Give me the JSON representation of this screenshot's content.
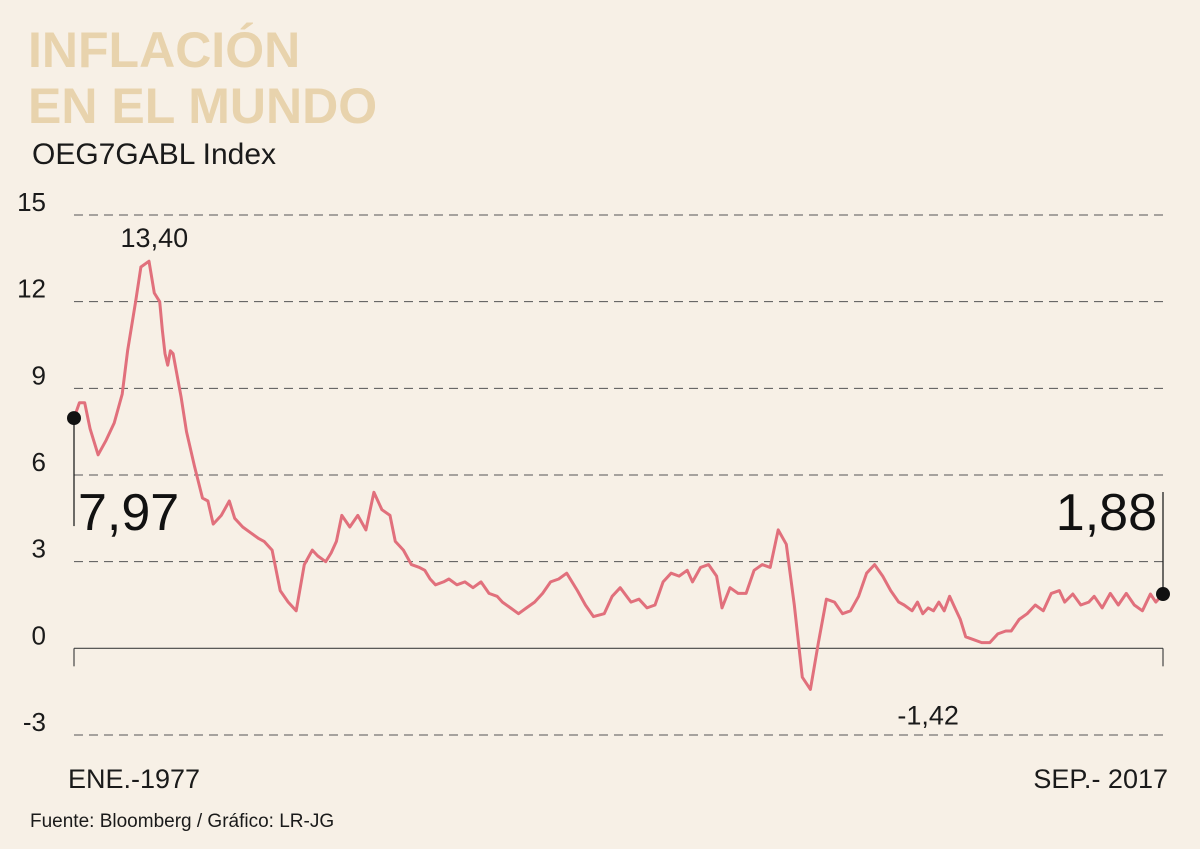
{
  "header": {
    "title_line1": "INFLACIÓN",
    "title_line2": "EN EL MUNDO",
    "subtitle": "OEG7GABL Index"
  },
  "footer": {
    "source": "Fuente: Bloomberg / Gráfico: LR-JG"
  },
  "colors": {
    "line": "#e1707c",
    "title": "#e8d3ad",
    "background": "#f7f0e6",
    "grid": "#555555"
  },
  "chart_data": {
    "type": "line",
    "title": "INFLACIÓN EN EL MUNDO",
    "subtitle": "OEG7GABL Index",
    "xlabel": "",
    "ylabel": "",
    "x_start": 1977.0,
    "x_end": 2017.67,
    "x_tick_labels": [
      "ENE.-1977",
      "SEP.- 2017"
    ],
    "y_ticks": [
      15,
      12,
      9,
      6,
      3,
      0,
      -3
    ],
    "y_tick_labels": [
      "15",
      "12",
      "9",
      "6",
      "3",
      "0",
      "-3"
    ],
    "ylim": [
      -3,
      15
    ],
    "grid": true,
    "series": [
      {
        "name": "OEG7GABL Index",
        "x": [
          1977.0,
          1977.2,
          1977.4,
          1977.6,
          1977.9,
          1978.2,
          1978.5,
          1978.8,
          1979.0,
          1979.3,
          1979.5,
          1979.8,
          1980.0,
          1980.2,
          1980.3,
          1980.4,
          1980.5,
          1980.6,
          1980.7,
          1981.0,
          1981.2,
          1981.5,
          1981.8,
          1982.0,
          1982.2,
          1982.5,
          1982.8,
          1983.0,
          1983.3,
          1983.6,
          1983.9,
          1984.1,
          1984.4,
          1984.7,
          1985.0,
          1985.3,
          1985.6,
          1985.9,
          1986.1,
          1986.4,
          1986.6,
          1986.8,
          1987.0,
          1987.3,
          1987.6,
          1987.9,
          1988.2,
          1988.5,
          1988.8,
          1989.0,
          1989.3,
          1989.6,
          1989.9,
          1990.1,
          1990.3,
          1990.5,
          1990.8,
          1991.0,
          1991.3,
          1991.6,
          1991.9,
          1992.2,
          1992.5,
          1992.8,
          1993.0,
          1993.3,
          1993.6,
          1993.9,
          1994.2,
          1994.5,
          1994.8,
          1995.1,
          1995.4,
          1995.8,
          1996.1,
          1996.4,
          1996.8,
          1997.1,
          1997.4,
          1997.8,
          1998.1,
          1998.4,
          1998.7,
          1999.0,
          1999.3,
          1999.6,
          1999.9,
          2000.1,
          2000.4,
          2000.7,
          2001.0,
          2001.2,
          2001.5,
          2001.8,
          2002.1,
          2002.4,
          2002.7,
          2003.0,
          2003.3,
          2003.6,
          2003.9,
          2004.2,
          2004.5,
          2004.8,
          2005.1,
          2005.4,
          2005.7,
          2006.0,
          2006.3,
          2006.6,
          2006.9,
          2007.2,
          2007.5,
          2007.8,
          2008.0,
          2008.3,
          2008.5,
          2008.7,
          2008.9,
          2009.1,
          2009.3,
          2009.5,
          2009.7,
          2009.9,
          2010.1,
          2010.3,
          2010.6,
          2010.9,
          2011.2,
          2011.5,
          2011.8,
          2012.0,
          2012.3,
          2012.6,
          2012.9,
          2013.2,
          2013.5,
          2013.8,
          2014.0,
          2014.3,
          2014.6,
          2014.9,
          2015.1,
          2015.4,
          2015.7,
          2016.0,
          2016.3,
          2016.6,
          2016.9,
          2017.2,
          2017.4,
          2017.67
        ],
        "values": [
          7.97,
          8.5,
          8.5,
          7.6,
          6.7,
          7.2,
          7.8,
          8.8,
          10.3,
          12.0,
          13.2,
          13.4,
          12.3,
          12.0,
          11.0,
          10.2,
          9.8,
          10.3,
          10.2,
          8.7,
          7.5,
          6.3,
          5.2,
          5.1,
          4.3,
          4.6,
          5.1,
          4.5,
          4.2,
          4.0,
          3.8,
          3.7,
          3.4,
          2.0,
          1.6,
          1.3,
          2.9,
          3.4,
          3.2,
          3.0,
          3.3,
          3.7,
          4.6,
          4.2,
          4.6,
          4.1,
          5.4,
          4.8,
          4.6,
          3.7,
          3.4,
          2.9,
          2.8,
          2.7,
          2.4,
          2.2,
          2.3,
          2.4,
          2.2,
          2.3,
          2.1,
          2.3,
          1.9,
          1.8,
          1.6,
          1.4,
          1.2,
          1.4,
          1.6,
          1.9,
          2.3,
          2.4,
          2.6,
          2.0,
          1.5,
          1.1,
          1.2,
          1.8,
          2.1,
          1.6,
          1.7,
          1.4,
          1.5,
          2.3,
          2.6,
          2.5,
          2.7,
          2.3,
          2.8,
          2.9,
          2.5,
          1.4,
          2.1,
          1.9,
          1.9,
          2.7,
          2.9,
          2.8,
          4.1,
          3.6,
          1.5,
          -1.0,
          -1.42,
          0.2,
          1.7,
          1.6,
          1.2,
          1.3,
          1.8,
          2.6,
          2.9,
          2.5,
          2.0,
          1.6,
          1.5,
          1.3,
          1.6,
          1.2,
          1.4,
          1.3,
          1.6,
          1.3,
          1.8,
          1.4,
          1.0,
          0.4,
          0.3,
          0.2,
          0.2,
          0.5,
          0.6,
          0.6,
          1.0,
          1.2,
          1.5,
          1.3,
          1.9,
          2.0,
          1.6,
          1.88,
          1.5,
          1.6,
          1.8,
          1.4,
          1.9,
          1.5,
          1.9,
          1.5,
          1.3,
          1.88,
          1.6,
          1.88
        ]
      }
    ],
    "annotations": [
      {
        "label": "13,40",
        "x": 1980.0,
        "value": 13.4
      },
      {
        "label": "-1,42",
        "x": 2008.9,
        "value": -1.42
      },
      {
        "label": "7,97",
        "x": 1977.0,
        "value": 7.97,
        "marker": true
      },
      {
        "label": "1,88",
        "x": 2017.67,
        "value": 1.88,
        "marker": true
      }
    ]
  }
}
